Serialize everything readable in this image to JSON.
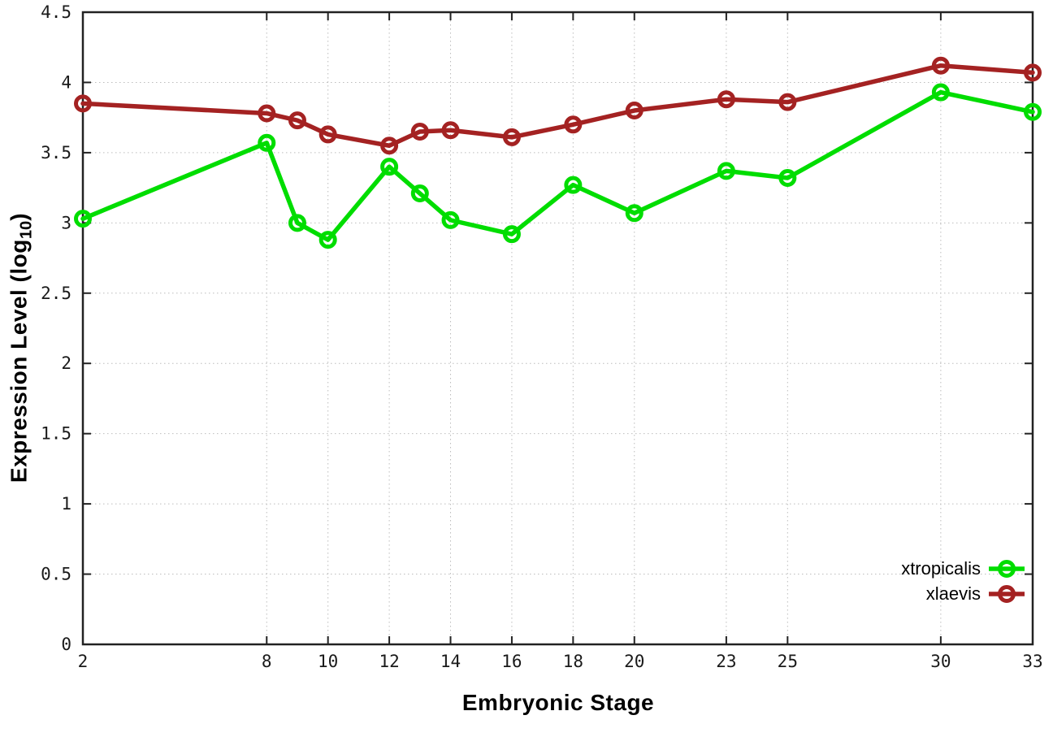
{
  "chart_data": {
    "type": "line",
    "title": "",
    "xlabel": "Embryonic Stage",
    "ylabel": "Expression Level (log10)",
    "ylabel_parts": {
      "main": "Expression Level (log",
      "sub": "10",
      "close": ")"
    },
    "x": [
      2,
      8,
      9,
      10,
      12,
      13,
      14,
      16,
      18,
      20,
      23,
      25,
      30,
      33
    ],
    "series": [
      {
        "name": "xtropicalis",
        "color": "#00dd00",
        "values": [
          3.03,
          3.57,
          3.0,
          2.88,
          3.4,
          3.21,
          3.02,
          2.92,
          3.27,
          3.07,
          3.37,
          3.32,
          3.93,
          3.79
        ]
      },
      {
        "name": "xlaevis",
        "color": "#a42222",
        "values": [
          3.85,
          3.78,
          3.73,
          3.63,
          3.55,
          3.65,
          3.66,
          3.61,
          3.7,
          3.8,
          3.88,
          3.86,
          4.12,
          4.07
        ]
      }
    ],
    "xticks": [
      2,
      8,
      10,
      12,
      14,
      16,
      18,
      20,
      23,
      25,
      30,
      33
    ],
    "yticks": [
      0,
      0.5,
      1,
      1.5,
      2,
      2.5,
      3,
      3.5,
      4,
      4.5
    ],
    "xlim": [
      2,
      33
    ],
    "ylim": [
      0,
      4.5
    ],
    "grid": true,
    "legend_position": "bottom-right",
    "marker": "open-circle"
  },
  "colors": {
    "background": "#ffffff",
    "border": "#222222",
    "grid": "#bcbcbc",
    "tick_text": "#1a1a1a"
  }
}
